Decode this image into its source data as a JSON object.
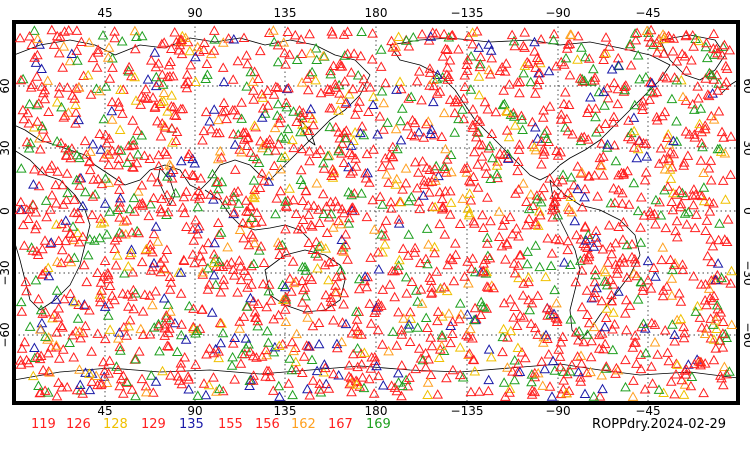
{
  "map": {
    "caption": "ROPPdry.2024-02-29",
    "lon_top_labels": [
      "45",
      "90",
      "135",
      "180",
      "−135",
      "−90",
      "−45"
    ],
    "lon_bottom_labels": [
      "45",
      "90",
      "135",
      "180",
      "−135",
      "−90",
      "−45"
    ],
    "lat_left_labels": [
      "60",
      "30",
      "0",
      "−30",
      "−60"
    ],
    "lat_right_labels": [
      "60",
      "30",
      "0",
      "−30",
      "−60"
    ],
    "marker_shape": "triangle-outline",
    "legend": [
      {
        "label": "119",
        "color": "#ff2020"
      },
      {
        "label": "126",
        "color": "#ff2020"
      },
      {
        "label": "128",
        "color": "#f0c000"
      },
      {
        "label": "129",
        "color": "#ff2020"
      },
      {
        "label": "135",
        "color": "#1a1aa8"
      },
      {
        "label": "155",
        "color": "#ff2020"
      },
      {
        "label": "156",
        "color": "#ff2020"
      },
      {
        "label": "162",
        "color": "#ffa020"
      },
      {
        "label": "167",
        "color": "#ff2020"
      },
      {
        "label": "169",
        "color": "#20a020"
      }
    ]
  }
}
